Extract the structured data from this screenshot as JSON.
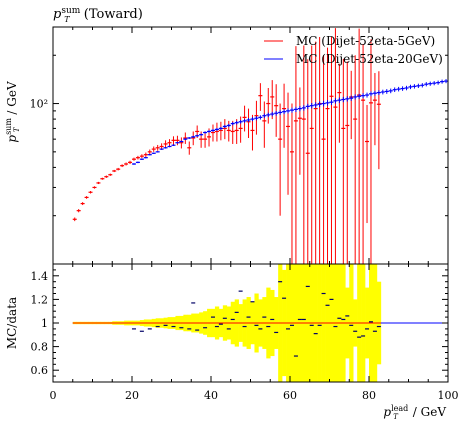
{
  "chart_data": {
    "type": "scatter",
    "title": "p_T^sum (Toward)",
    "top": {
      "ylabel": "p_T^sum / GeV",
      "yscale": "log",
      "ylim": [
        10,
        300
      ],
      "yticks": [
        {
          "value": 100,
          "label": "10²"
        }
      ],
      "legend_position": "top-right",
      "series": [
        {
          "name": "MC (Dijet-52eta-5GeV)",
          "color": "#ff0000",
          "x": [
            5.5,
            6.5,
            7.5,
            8.5,
            9.5,
            10.5,
            11.5,
            12.5,
            13.5,
            14.5,
            15.5,
            16.5,
            17.5,
            18.5,
            19.5,
            20.5,
            21.5,
            22.5,
            23.5,
            24.5,
            25.5,
            26.5,
            27.5,
            28.5,
            29.5,
            30.5,
            31.5,
            32.5,
            33.5,
            34.5,
            35.5,
            36.5,
            37.5,
            38.5,
            39.5,
            40.5,
            41.5,
            42.5,
            43.5,
            44.5,
            45.5,
            46.5,
            47.5,
            48.5,
            49.5,
            50.5,
            51.5,
            52.5,
            53.5,
            54.5,
            55.5,
            56.5,
            57.5,
            58.5,
            59.5,
            60.5,
            61.5,
            62.5,
            63.5,
            64.5,
            65.5,
            66.5,
            67.5,
            68.5,
            69.5,
            70.5,
            71.5,
            72.5,
            73.5,
            74.5,
            75.5,
            76.5,
            77.5,
            78.5,
            79.5,
            80.5,
            81.5,
            82.5
          ],
          "y": [
            19,
            21.5,
            23.8,
            26,
            28,
            30,
            32,
            34,
            35,
            36,
            38,
            39,
            41,
            42,
            43,
            45,
            46,
            47,
            48,
            50,
            52,
            53,
            54,
            56,
            57,
            59,
            59,
            57,
            61,
            53,
            61,
            67,
            60,
            60,
            62,
            66,
            67,
            68,
            70,
            68,
            67,
            68,
            70,
            82,
            77,
            68,
            84,
            112,
            78,
            100,
            110,
            97,
            60,
            93,
            72,
            50,
            78,
            81,
            80,
            49,
            70,
            93,
            100,
            60,
            93,
            111,
            95,
            117,
            70,
            73,
            110,
            80,
            113,
            105,
            58,
            101,
            105,
            99
          ],
          "yerr": [
            0.5,
            0.5,
            0.5,
            0.5,
            0.5,
            0.5,
            0.5,
            0.5,
            0.6,
            0.6,
            0.6,
            0.7,
            0.8,
            0.9,
            1,
            1,
            1.2,
            1.3,
            1.5,
            1.7,
            2,
            2.2,
            2.5,
            3,
            3,
            3.5,
            4,
            4.5,
            5,
            5,
            6,
            6,
            7,
            7,
            8,
            8,
            9,
            9,
            10,
            10,
            11,
            12,
            13,
            15,
            16,
            17,
            20,
            22,
            25,
            25,
            30,
            35,
            40,
            40,
            45,
            50,
            150,
            45,
            150,
            140,
            160,
            150,
            160,
            140,
            130,
            150,
            200,
            60,
            120,
            110,
            50,
            120,
            180,
            130,
            40,
            150,
            50,
            60
          ]
        },
        {
          "name": "MC (Dijet-52eta-20GeV)",
          "color": "#0000ff",
          "x": [
            20.5,
            21.5,
            22.5,
            23.5,
            24.5,
            25.5,
            26.5,
            27.5,
            28.5,
            29.5,
            30.5,
            31.5,
            32.5,
            33.5,
            34.5,
            35.5,
            36.5,
            37.5,
            38.5,
            39.5,
            40.5,
            41.5,
            42.5,
            43.5,
            44.5,
            45.5,
            46.5,
            47.5,
            48.5,
            49.5,
            50.5,
            51.5,
            52.5,
            53.5,
            54.5,
            55.5,
            56.5,
            57.5,
            58.5,
            59.5,
            60.5,
            61.5,
            62.5,
            63.5,
            64.5,
            65.5,
            66.5,
            67.5,
            68.5,
            69.5,
            70.5,
            71.5,
            72.5,
            73.5,
            74.5,
            75.5,
            76.5,
            77.5,
            78.5,
            79.5,
            80.5,
            81.5,
            82.5,
            83.5,
            84.5,
            85.5,
            86.5,
            87.5,
            88.5,
            89.5,
            90.5,
            91.5,
            92.5,
            93.5,
            94.5,
            95.5,
            96.5,
            97.5,
            98.5,
            99.5
          ],
          "y": [
            42,
            43,
            45,
            46,
            48,
            49,
            50,
            52,
            53,
            54,
            55,
            57,
            58,
            60,
            61,
            62,
            63,
            64,
            66,
            67,
            68,
            69,
            70,
            72,
            73,
            75,
            76,
            77,
            78,
            79,
            80,
            81,
            82,
            84,
            85,
            86,
            87,
            88,
            89,
            90,
            91,
            92,
            93,
            94,
            96,
            97,
            98,
            99,
            100,
            101,
            102,
            104,
            105,
            106,
            107,
            108,
            110,
            111,
            112,
            113,
            115,
            116,
            117,
            118,
            119,
            120,
            122,
            123,
            124,
            125,
            127,
            128,
            129,
            130,
            132,
            133,
            134,
            135,
            137,
            138
          ],
          "yerr": [
            0.5,
            0.5,
            0.5,
            0.5,
            0.5,
            0.5,
            0.5,
            0.5,
            0.6,
            0.6,
            0.6,
            0.7,
            0.7,
            0.8,
            0.8,
            0.9,
            1,
            1,
            1.1,
            1.2,
            1.3,
            1.4,
            1.5,
            1.6,
            1.7,
            1.8,
            2,
            2,
            2.1,
            2.2,
            2.3,
            2.4,
            2.5,
            2.6,
            2.7,
            2.8,
            2.9,
            3,
            3.1,
            3.2,
            3.3,
            3.4,
            3.5,
            3.6,
            3.7,
            3.8,
            3.9,
            4,
            4,
            4,
            4,
            4,
            4,
            4,
            4,
            4,
            4,
            4,
            4,
            4,
            4,
            4,
            4,
            4,
            4,
            4,
            4,
            4,
            4,
            4,
            4,
            4,
            4,
            4,
            4,
            4,
            4,
            4,
            4,
            4
          ]
        }
      ]
    },
    "ratio": {
      "ylabel": "MC/data",
      "ylim": [
        0.5,
        1.5
      ],
      "yticks": [
        {
          "value": 0.6,
          "label": "0.6"
        },
        {
          "value": 0.8,
          "label": "0.8"
        },
        {
          "value": 1,
          "label": "1"
        },
        {
          "value": 1.2,
          "label": "1.2"
        },
        {
          "value": 1.4,
          "label": "1.4"
        }
      ],
      "band": {
        "color": "#ffff00",
        "x": [
          5.5,
          6.5,
          7.5,
          8.5,
          9.5,
          10.5,
          11.5,
          12.5,
          13.5,
          14.5,
          15.5,
          16.5,
          17.5,
          18.5,
          19.5,
          20.5,
          21.5,
          22.5,
          23.5,
          24.5,
          25.5,
          26.5,
          27.5,
          28.5,
          29.5,
          30.5,
          31.5,
          32.5,
          33.5,
          34.5,
          35.5,
          36.5,
          37.5,
          38.5,
          39.5,
          40.5,
          41.5,
          42.5,
          43.5,
          44.5,
          45.5,
          46.5,
          47.5,
          48.5,
          49.5,
          50.5,
          51.5,
          52.5,
          53.5,
          54.5,
          55.5,
          56.5,
          57.5,
          58.5,
          59.5,
          60.5,
          61.5,
          62.5,
          63.5,
          64.5,
          65.5,
          66.5,
          67.5,
          68.5,
          69.5,
          70.5,
          71.5,
          72.5,
          73.5,
          74.5,
          75.5,
          76.5,
          77.5,
          78.5,
          79.5,
          80.5,
          81.5,
          82.5
        ],
        "halfwidth": [
          0.01,
          0.01,
          0.01,
          0.01,
          0.01,
          0.01,
          0.01,
          0.01,
          0.01,
          0.01,
          0.015,
          0.015,
          0.015,
          0.02,
          0.02,
          0.02,
          0.02,
          0.025,
          0.03,
          0.03,
          0.035,
          0.04,
          0.04,
          0.045,
          0.05,
          0.05,
          0.06,
          0.06,
          0.07,
          0.07,
          0.08,
          0.08,
          0.09,
          0.1,
          0.12,
          0.12,
          0.14,
          0.12,
          0.15,
          0.14,
          0.18,
          0.2,
          0.16,
          0.2,
          0.22,
          0.18,
          0.25,
          0.2,
          0.22,
          0.3,
          0.28,
          0.22,
          0.5,
          0.45,
          0.5,
          0.55,
          0.5,
          0.5,
          0.55,
          0.5,
          0.55,
          0.55,
          0.5,
          0.5,
          0.55,
          0.5,
          0.55,
          0.5,
          0.55,
          0.3,
          0.55,
          0.2,
          0.55,
          0.55,
          0.3,
          0.55,
          0.55,
          0.35
        ]
      },
      "series": [
        {
          "name": "MC (Dijet-52eta-5GeV)",
          "color": "#ff0000",
          "x": [
            5.5,
            15.5,
            25.5,
            35.5,
            45.5,
            55.5,
            65.5,
            75.5
          ],
          "y": [
            1,
            1,
            1,
            1,
            1,
            1,
            1,
            1
          ]
        },
        {
          "name": "MC (Dijet-52eta-20GeV)",
          "color": "#0000ff",
          "x": [
            20.5,
            22.5,
            24.5,
            26.5,
            28.5,
            30.5,
            32.5,
            34.5,
            35.5,
            36.5,
            38.5,
            40.5,
            41.5,
            42.5,
            43.5,
            44.5,
            45.5,
            46.5,
            47.5,
            48.5,
            49.5,
            50.5,
            51.5,
            52.5,
            53.5,
            54.5,
            55.5,
            56.5,
            57.5,
            58.5,
            59.5,
            60.5,
            61.5,
            62.5,
            63.5,
            64.5,
            65.5,
            66.5,
            67.5,
            68.5,
            69.5,
            70.5,
            71.5,
            72.5,
            73.5,
            74.5,
            75.5,
            76.5,
            77.5,
            78.5,
            79.5,
            80.5,
            81.5,
            82.5
          ],
          "y": [
            0.95,
            0.93,
            0.95,
            0.97,
            0.98,
            0.97,
            0.96,
            0.95,
            1.17,
            0.94,
            0.96,
            1.05,
            0.97,
            0.99,
            1.04,
            0.95,
            1.03,
            1.09,
            1.27,
            0.97,
            1.05,
            1.18,
            0.98,
            0.95,
            1.05,
            0.97,
            1.03,
            0.92,
            1.35,
            1.21,
            0.95,
            0.98,
            0.72,
            1.03,
            1.03,
            1.31,
            0.98,
            0.91,
            0.98,
            1.25,
            1.15,
            1.2,
            0.97,
            1.04,
            1.03,
            1.06,
            0.98,
            0.93,
            0.88,
            0.89,
            0.95,
            1.01,
            0.93,
            0.97
          ]
        }
      ]
    },
    "x": {
      "xlabel": "p_T^lead / GeV",
      "xlim": [
        0,
        100
      ],
      "xticks": [
        0,
        20,
        40,
        60,
        80,
        100
      ]
    }
  }
}
